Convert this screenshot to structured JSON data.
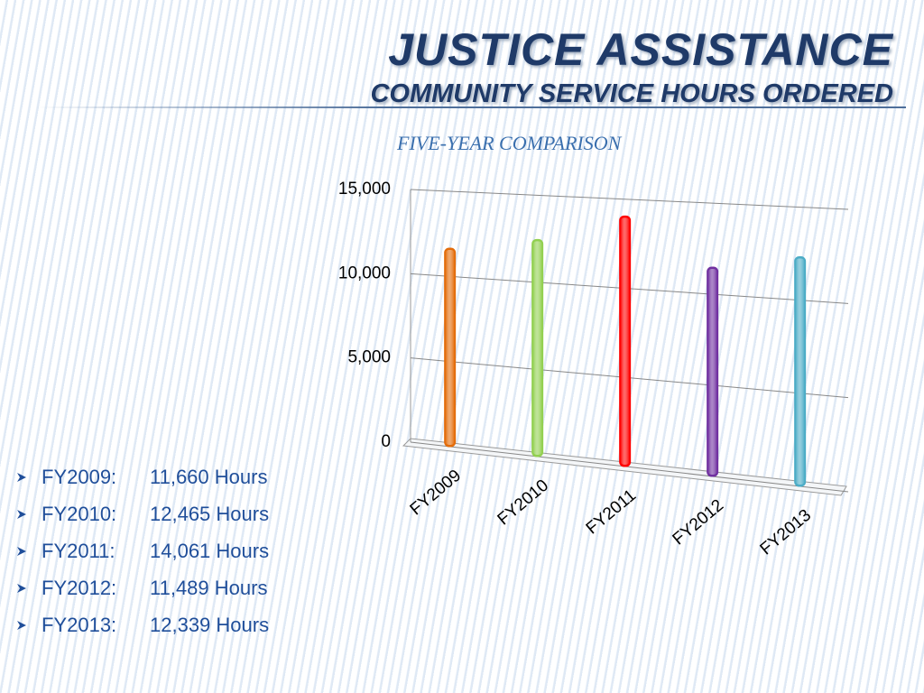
{
  "title": "JUSTICE ASSISTANCE",
  "subtitle": "COMMUNITY SERVICE HOURS ORDERED",
  "bullet_labels": [
    "FY2009:",
    "FY2010:",
    "FY2011:",
    "FY2012:",
    "FY2013:"
  ],
  "chart_data": {
    "type": "bar",
    "title": "FIVE-YEAR COMPARISON",
    "categories": [
      "FY2009",
      "FY2010",
      "FY2011",
      "FY2012",
      "FY2013"
    ],
    "values": [
      11660,
      12465,
      14061,
      11489,
      12339
    ],
    "value_labels": [
      "11,660 Hours",
      "12,465 Hours",
      "14,061 Hours",
      "11,489 Hours",
      "12,339 Hours"
    ],
    "colors": [
      "#e36c0a",
      "#92d050",
      "#ff0000",
      "#7030a0",
      "#4bacc6"
    ],
    "ylim": [
      0,
      15000
    ],
    "yticks": [
      0,
      {
        "value": 5000,
        "label": "5,000"
      },
      {
        "value": 10000,
        "label": "10,000"
      },
      {
        "value": 15000,
        "label": "15,000"
      }
    ],
    "grid": true
  }
}
